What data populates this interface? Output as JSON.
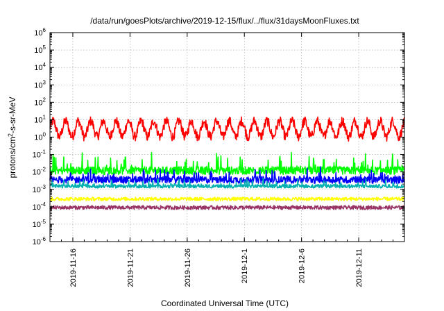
{
  "chart_data": {
    "type": "line",
    "title": "/data/run/goesPlots/archive/2019-12-15/flux/../flux/31daysMoonFluxes.txt",
    "xlabel": "Coordinated Universal Time (UTC)",
    "ylabel_main": "protons/cm",
    "ylabel_sup": "2",
    "ylabel_rest": "-s-sr-MeV",
    "y_scale": "log",
    "ylim_exp": [
      -6,
      6
    ],
    "y_ticks": [
      {
        "base": "10",
        "exp": "-6"
      },
      {
        "base": "10",
        "exp": "-5"
      },
      {
        "base": "10",
        "exp": "-4"
      },
      {
        "base": "10",
        "exp": "-3"
      },
      {
        "base": "10",
        "exp": "-2"
      },
      {
        "base": "10",
        "exp": "-1"
      },
      {
        "base": "10",
        "exp": "0"
      },
      {
        "base": "10",
        "exp": "1"
      },
      {
        "base": "10",
        "exp": "2"
      },
      {
        "base": "10",
        "exp": "3"
      },
      {
        "base": "10",
        "exp": "4"
      },
      {
        "base": "10",
        "exp": "5"
      },
      {
        "base": "10",
        "exp": "6"
      }
    ],
    "xlim": [
      "2019-11-14",
      "2019-12-15"
    ],
    "x_ticks": [
      "2019-11-16",
      "2019-11-21",
      "2019-11-26",
      "2019-12-1",
      "2019-12-6",
      "2019-12-11"
    ],
    "x_tick_dates": [
      "2019-11-16",
      "2019-11-21",
      "2019-11-26",
      "2019-12-01",
      "2019-12-06",
      "2019-12-11"
    ],
    "grid": true,
    "series": [
      {
        "color": "#ff0000",
        "level": 3.0,
        "noise": 0.55,
        "period_days": 1.1,
        "cycle_amp": 0.45,
        "spike": 0.0
      },
      {
        "color": "#00ff00",
        "level": 0.012,
        "noise": 0.45,
        "period_days": 0.7,
        "cycle_amp": 0.0,
        "spike": 0.9
      },
      {
        "color": "#0000ff",
        "level": 0.0035,
        "noise": 0.4,
        "period_days": 0.6,
        "cycle_amp": 0.0,
        "spike": 0.6
      },
      {
        "color": "#00b0b0",
        "level": 0.0015,
        "noise": 0.2,
        "period_days": 0.5,
        "cycle_amp": 0.0,
        "spike": 0.4
      },
      {
        "color": "#ffff00",
        "level": 0.00028,
        "noise": 0.2,
        "period_days": 0.5,
        "cycle_amp": 0.0,
        "spike": 0.0
      },
      {
        "color": "#993366",
        "level": 9e-05,
        "noise": 0.22,
        "period_days": 0.5,
        "cycle_amp": 0.0,
        "spike": 0.0
      }
    ]
  }
}
